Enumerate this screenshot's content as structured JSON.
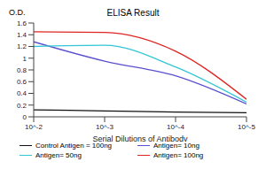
{
  "chart_data": {
    "type": "line",
    "title": "ELISA Result",
    "y_label": "O.D.",
    "x_label": "Serial Dilutions of Antibody",
    "log": "x",
    "grid": false,
    "legend": "bottom",
    "x": [
      0.01,
      0.001,
      0.0001,
      1e-05
    ],
    "xlim": [
      0.01,
      1e-05
    ],
    "xticks": [
      {
        "value": 0.01,
        "label": "10^-2"
      },
      {
        "value": 0.001,
        "label": "10^-3"
      },
      {
        "value": 0.0001,
        "label": "10^-4"
      },
      {
        "value": 1e-05,
        "label": "10^-5"
      }
    ],
    "ylim": [
      0,
      1.6
    ],
    "yticks": [
      0,
      0.2,
      0.4,
      0.6,
      0.8,
      1,
      1.2,
      1.4,
      1.6
    ],
    "series": [
      {
        "name": "Control Antigen = 100ng",
        "color": "#111111",
        "values": [
          0.12,
          0.1,
          0.08,
          0.07
        ]
      },
      {
        "name": "Antigen= 10ng",
        "color": "#5a4fcf",
        "values": [
          1.28,
          0.95,
          0.7,
          0.22
        ]
      },
      {
        "name": "Antigen= 50ng",
        "color": "#33c6d6",
        "values": [
          1.2,
          1.22,
          0.85,
          0.25
        ]
      },
      {
        "name": "Antigen= 100ng",
        "color": "#e02424",
        "values": [
          1.45,
          1.44,
          1.12,
          0.3
        ]
      }
    ]
  }
}
